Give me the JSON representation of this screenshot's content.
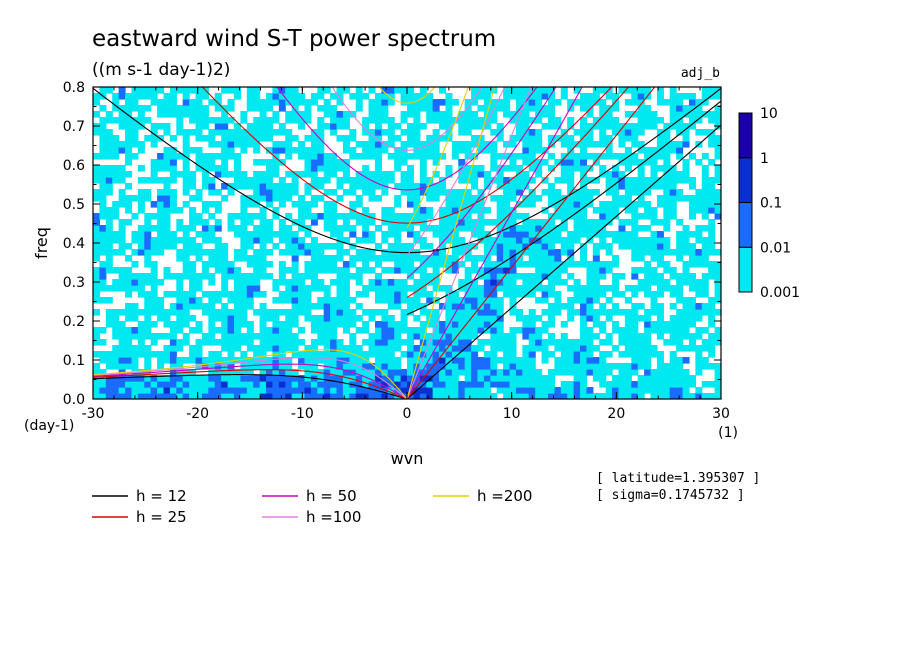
{
  "chart_data": {
    "type": "heatmap",
    "title": "eastward wind S-T power spectrum",
    "subtitle": "((m s-1 day-1)2)",
    "tag": "adj_b",
    "xlabel": "wvn",
    "ylabel": "freq",
    "x_unit": "(1)",
    "y_unit": "(day-1)",
    "xlim": [
      -30,
      30
    ],
    "ylim": [
      0,
      0.8
    ],
    "x_ticks": [
      -30,
      -20,
      -10,
      0,
      10,
      20,
      30
    ],
    "x_tick_labels": [
      "-30",
      "-20",
      "-10",
      "0",
      "10",
      "20",
      "30"
    ],
    "y_ticks": [
      0.0,
      0.1,
      0.2,
      0.3,
      0.4,
      0.5,
      0.6,
      0.7,
      0.8
    ],
    "y_tick_labels": [
      "0.0",
      "0.1",
      "0.2",
      "0.3",
      "0.4",
      "0.5",
      "0.6",
      "0.7",
      "0.8"
    ],
    "colorbar": {
      "scale": "log",
      "levels": [
        0.001,
        0.01,
        0.1,
        1,
        10
      ],
      "labels": [
        "0.001",
        "0.01",
        "0.1",
        "1",
        "10"
      ],
      "colors": [
        "#00e8f0",
        "#1a6cff",
        "#0a2fd0",
        "#1a00a8"
      ]
    },
    "dispersion_curves": {
      "equivalent_depths": [
        12,
        25,
        50,
        100,
        200
      ],
      "colors": [
        "#000000",
        "#e00000",
        "#d000c0",
        "#e080e0",
        "#e8d000"
      ],
      "legend": [
        {
          "label": "h = 12",
          "color": "#000000"
        },
        {
          "label": "h = 25",
          "color": "#e00000"
        },
        {
          "label": "h = 50",
          "color": "#d000c0"
        },
        {
          "label": "h =100",
          "color": "#e080e0"
        },
        {
          "label": "h =200",
          "color": "#e8d000"
        }
      ]
    },
    "annotations": [
      "[ latitude=1.395307 ]",
      "[ sigma=0.1745732 ]"
    ]
  }
}
